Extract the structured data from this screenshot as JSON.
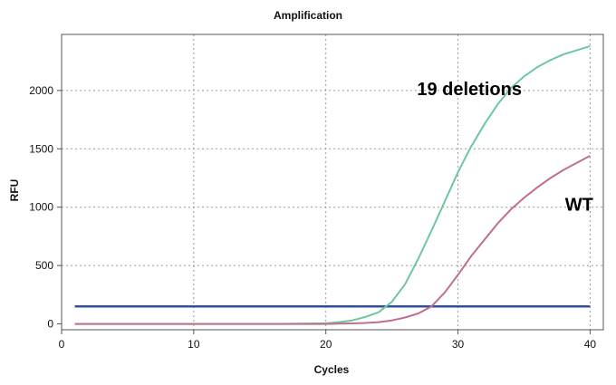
{
  "chart_data": {
    "type": "line",
    "title": "Amplification",
    "xlabel": "Cycles",
    "ylabel": "RFU",
    "xlim": [
      0,
      41
    ],
    "ylim": [
      -50,
      2480
    ],
    "x_ticks": [
      0,
      10,
      20,
      30,
      40
    ],
    "y_ticks": [
      0,
      500,
      1000,
      1500,
      2000
    ],
    "grid": true,
    "colors": {
      "series1": "#6cc79e",
      "series2": "#c06e8e",
      "threshold": "#2e4fa5"
    },
    "threshold": 150,
    "annotations": [
      {
        "text": "19 deletions",
        "x": 26.9,
        "y": 1960
      },
      {
        "text": "WT",
        "x": 38.1,
        "y": 970
      }
    ],
    "series": [
      {
        "x": [
          1,
          4,
          8,
          12,
          16,
          20,
          21,
          22,
          23,
          24,
          25,
          26,
          27,
          28,
          29,
          30,
          31,
          32,
          33,
          34,
          35,
          36,
          37,
          38,
          39,
          40
        ],
        "y": [
          0,
          0,
          0,
          0,
          0,
          5,
          15,
          30,
          60,
          100,
          190,
          340,
          560,
          800,
          1050,
          1300,
          1520,
          1710,
          1880,
          2020,
          2120,
          2200,
          2260,
          2310,
          2345,
          2380
        ]
      },
      {
        "x": [
          1,
          4,
          8,
          12,
          16,
          20,
          21,
          22,
          23,
          24,
          25,
          26,
          27,
          28,
          29,
          30,
          31,
          32,
          33,
          34,
          35,
          36,
          37,
          38,
          39,
          40
        ],
        "y": [
          0,
          0,
          0,
          0,
          0,
          0,
          2,
          4,
          8,
          15,
          30,
          55,
          90,
          150,
          270,
          420,
          580,
          720,
          860,
          980,
          1080,
          1170,
          1250,
          1320,
          1380,
          1440
        ]
      }
    ]
  }
}
